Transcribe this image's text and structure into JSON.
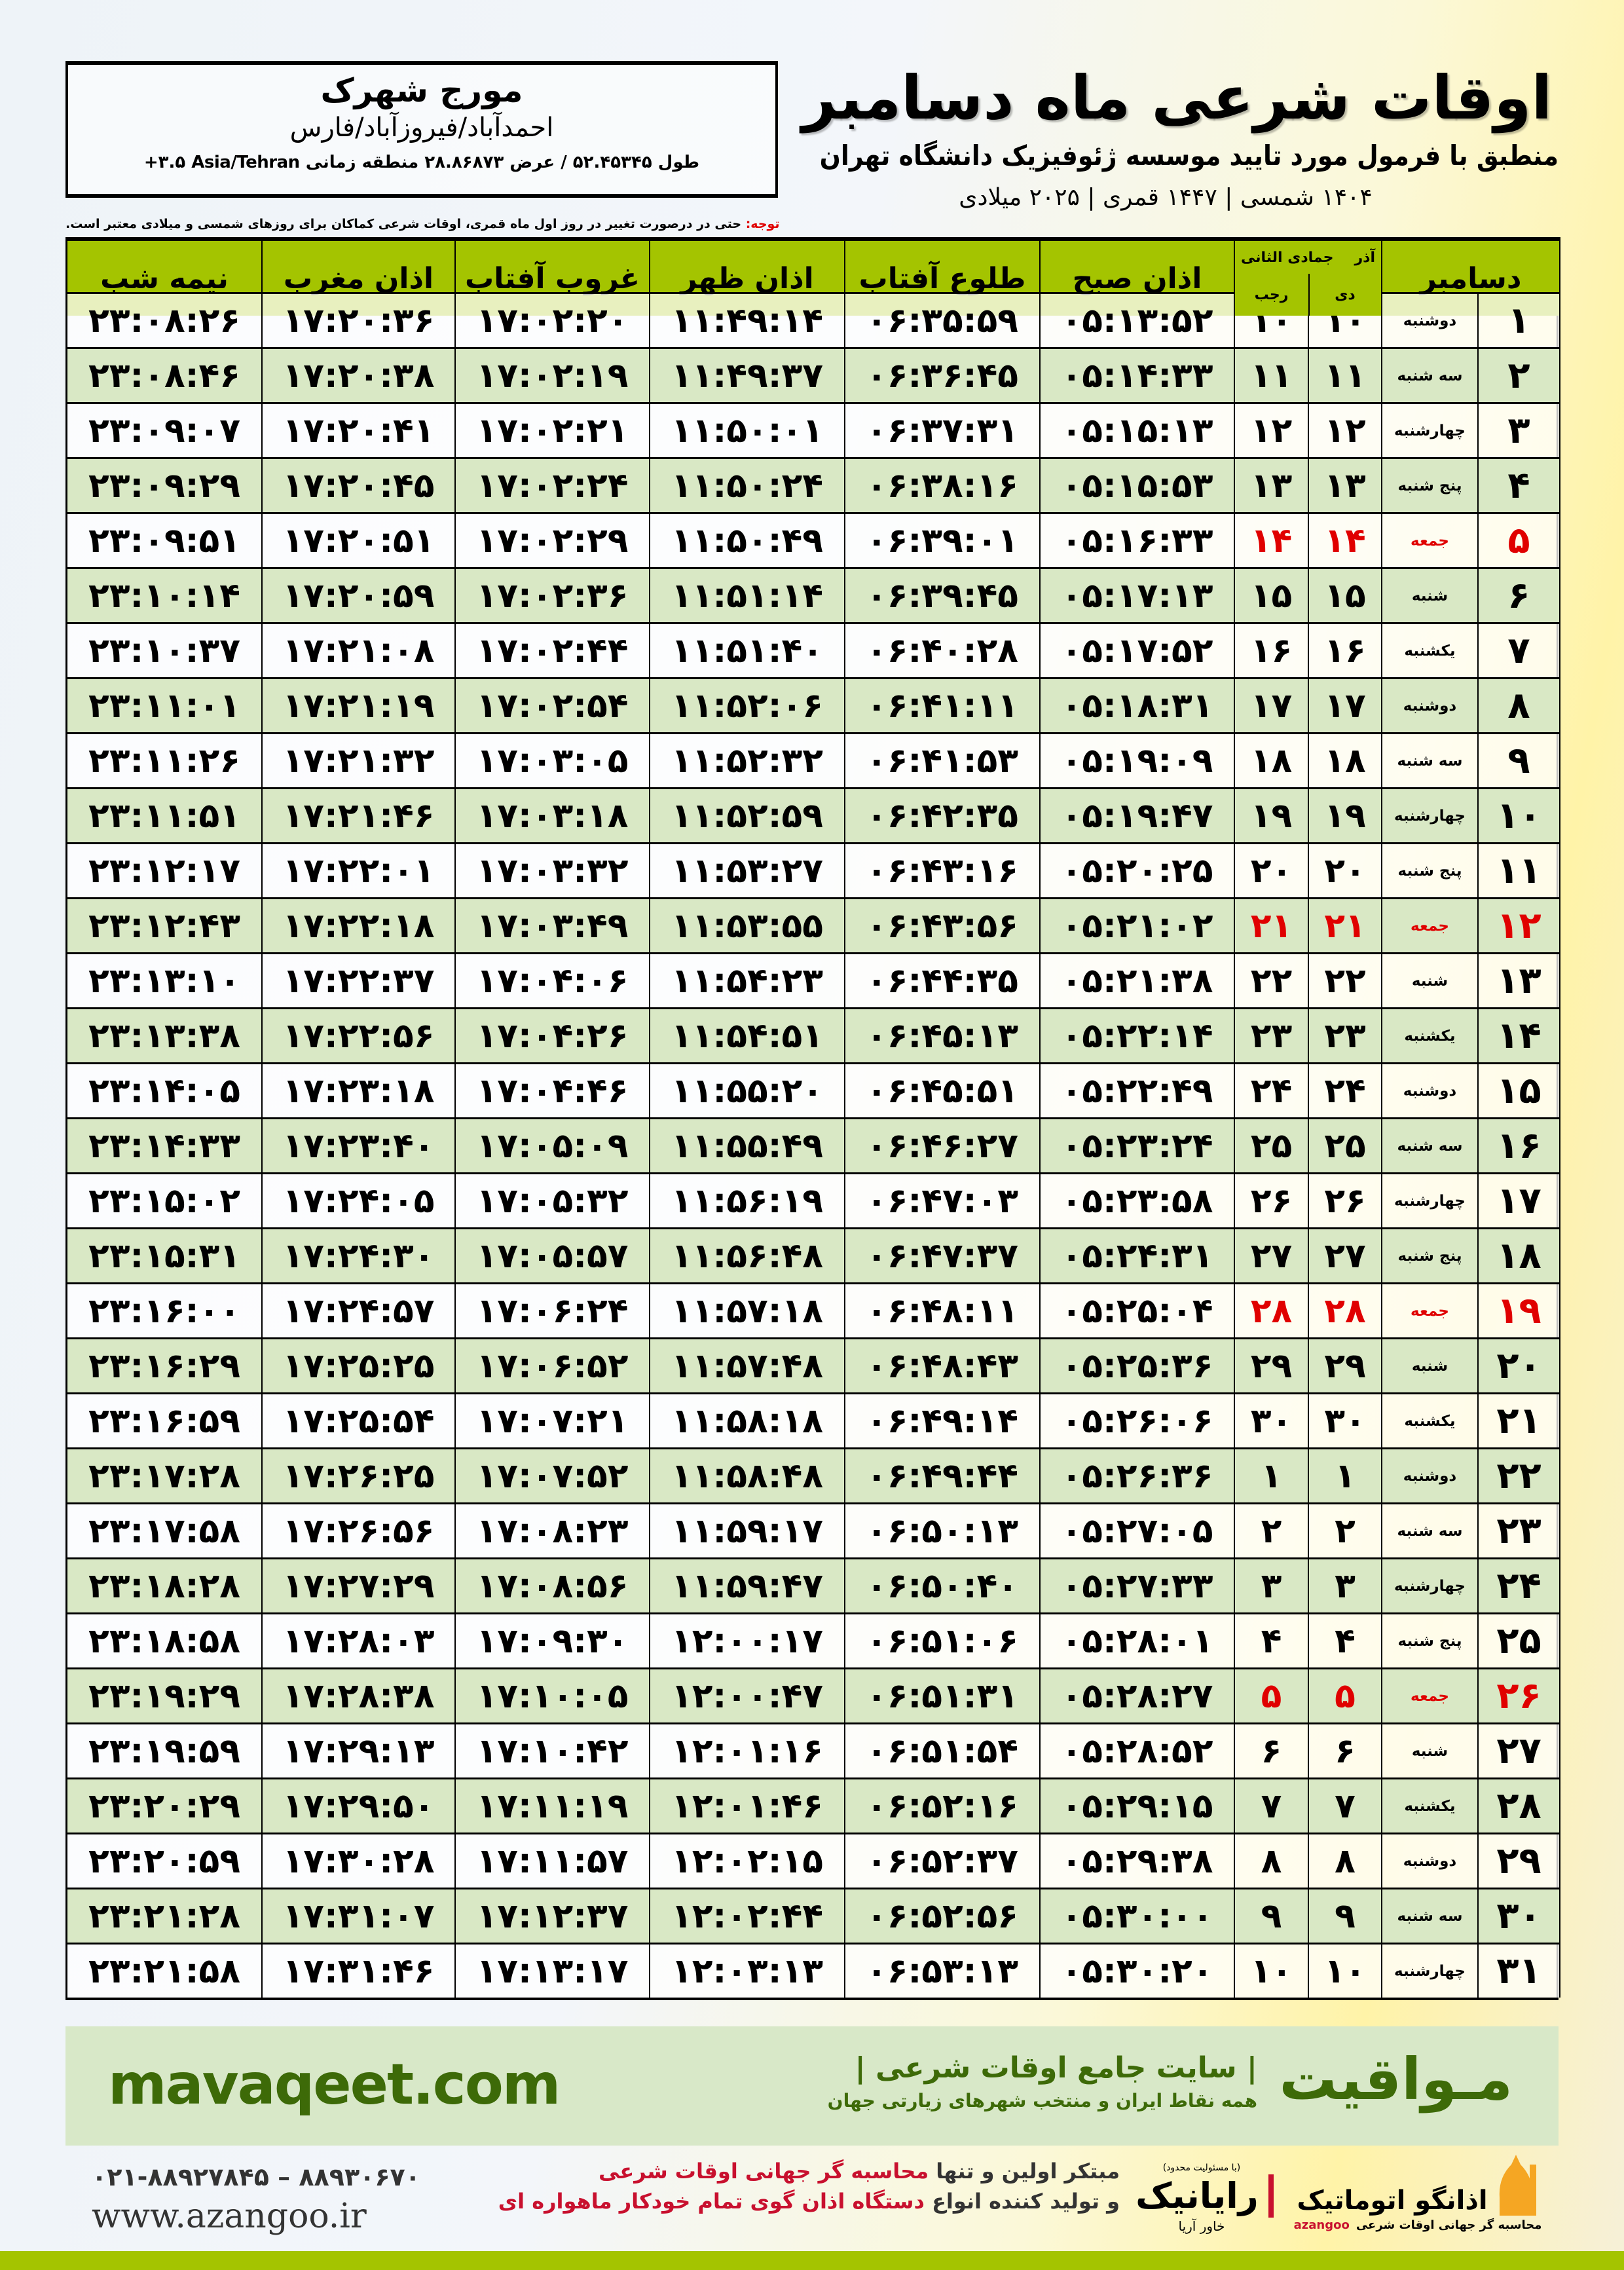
{
  "location": {
    "city": "مورج شهرک",
    "region": "احمدآباد/فیروزآباد/فارس",
    "coords": "طول ۵۲.۴۵۳۴۵ / عرض ۲۸.۸۶۸۷۳ منطقه زمانی ‎+۳.۵ Asia/Tehran"
  },
  "header": {
    "title": "اوقات شرعی ماه دسامبر",
    "subtitle": "منطبق با فرمول مورد تایید موسسه ژئوفیزیک دانشگاه تهران",
    "dateline": "۱۴۰۴ شمسی | ۱۴۴۷ قمری | ۲۰۲۵ میلادی"
  },
  "note": {
    "label": "توجه:",
    "text": " حتی در درصورت تغییر در روز اول ماه قمری، اوقات شرعی کماکان برای روزهای شمسی و میلادی معتبر است."
  },
  "table": {
    "headers": {
      "midnight": "نیمه شب",
      "maghrib": "اذان مغرب",
      "sunset": "غروب آفتاب",
      "dhuhr": "اذان ظهر",
      "sunrise": "طلوع آفتاب",
      "fajr": "اذان صبح",
      "hijri_top": "جمادی الثانی",
      "hijri_bottom": "رجب",
      "shamsi_top": "آذر",
      "shamsi_bottom": "دی",
      "gregorian": "دسامبر"
    },
    "friday_color": "#e00000",
    "header_color": "#a4c400",
    "alt_row_color": "#d9e8c5",
    "columns": [
      "day",
      "weekday",
      "shamsi",
      "hijri",
      "fajr",
      "sunrise",
      "dhuhr",
      "sunset",
      "maghrib",
      "midnight"
    ],
    "rows": [
      [
        "۱",
        "دوشنبه",
        "۱۰",
        "۱۰",
        "۰۵:۱۳:۵۲",
        "۰۶:۳۵:۵۹",
        "۱۱:۴۹:۱۴",
        "۱۷:۰۲:۲۰",
        "۱۷:۲۰:۳۶",
        "۲۳:۰۸:۲۶"
      ],
      [
        "۲",
        "سه شنبه",
        "۱۱",
        "۱۱",
        "۰۵:۱۴:۳۳",
        "۰۶:۳۶:۴۵",
        "۱۱:۴۹:۳۷",
        "۱۷:۰۲:۱۹",
        "۱۷:۲۰:۳۸",
        "۲۳:۰۸:۴۶"
      ],
      [
        "۳",
        "چهارشنبه",
        "۱۲",
        "۱۲",
        "۰۵:۱۵:۱۳",
        "۰۶:۳۷:۳۱",
        "۱۱:۵۰:۰۱",
        "۱۷:۰۲:۲۱",
        "۱۷:۲۰:۴۱",
        "۲۳:۰۹:۰۷"
      ],
      [
        "۴",
        "پنج شنبه",
        "۱۳",
        "۱۳",
        "۰۵:۱۵:۵۳",
        "۰۶:۳۸:۱۶",
        "۱۱:۵۰:۲۴",
        "۱۷:۰۲:۲۴",
        "۱۷:۲۰:۴۵",
        "۲۳:۰۹:۲۹"
      ],
      [
        "۵",
        "جمعه",
        "۱۴",
        "۱۴",
        "۰۵:۱۶:۳۳",
        "۰۶:۳۹:۰۱",
        "۱۱:۵۰:۴۹",
        "۱۷:۰۲:۲۹",
        "۱۷:۲۰:۵۱",
        "۲۳:۰۹:۵۱"
      ],
      [
        "۶",
        "شنبه",
        "۱۵",
        "۱۵",
        "۰۵:۱۷:۱۳",
        "۰۶:۳۹:۴۵",
        "۱۱:۵۱:۱۴",
        "۱۷:۰۲:۳۶",
        "۱۷:۲۰:۵۹",
        "۲۳:۱۰:۱۴"
      ],
      [
        "۷",
        "یکشنبه",
        "۱۶",
        "۱۶",
        "۰۵:۱۷:۵۲",
        "۰۶:۴۰:۲۸",
        "۱۱:۵۱:۴۰",
        "۱۷:۰۲:۴۴",
        "۱۷:۲۱:۰۸",
        "۲۳:۱۰:۳۷"
      ],
      [
        "۸",
        "دوشنبه",
        "۱۷",
        "۱۷",
        "۰۵:۱۸:۳۱",
        "۰۶:۴۱:۱۱",
        "۱۱:۵۲:۰۶",
        "۱۷:۰۲:۵۴",
        "۱۷:۲۱:۱۹",
        "۲۳:۱۱:۰۱"
      ],
      [
        "۹",
        "سه شنبه",
        "۱۸",
        "۱۸",
        "۰۵:۱۹:۰۹",
        "۰۶:۴۱:۵۳",
        "۱۱:۵۲:۳۲",
        "۱۷:۰۳:۰۵",
        "۱۷:۲۱:۳۲",
        "۲۳:۱۱:۲۶"
      ],
      [
        "۱۰",
        "چهارشنبه",
        "۱۹",
        "۱۹",
        "۰۵:۱۹:۴۷",
        "۰۶:۴۲:۳۵",
        "۱۱:۵۲:۵۹",
        "۱۷:۰۳:۱۸",
        "۱۷:۲۱:۴۶",
        "۲۳:۱۱:۵۱"
      ],
      [
        "۱۱",
        "پنج شنبه",
        "۲۰",
        "۲۰",
        "۰۵:۲۰:۲۵",
        "۰۶:۴۳:۱۶",
        "۱۱:۵۳:۲۷",
        "۱۷:۰۳:۳۲",
        "۱۷:۲۲:۰۱",
        "۲۳:۱۲:۱۷"
      ],
      [
        "۱۲",
        "جمعه",
        "۲۱",
        "۲۱",
        "۰۵:۲۱:۰۲",
        "۰۶:۴۳:۵۶",
        "۱۱:۵۳:۵۵",
        "۱۷:۰۳:۴۹",
        "۱۷:۲۲:۱۸",
        "۲۳:۱۲:۴۳"
      ],
      [
        "۱۳",
        "شنبه",
        "۲۲",
        "۲۲",
        "۰۵:۲۱:۳۸",
        "۰۶:۴۴:۳۵",
        "۱۱:۵۴:۲۳",
        "۱۷:۰۴:۰۶",
        "۱۷:۲۲:۳۷",
        "۲۳:۱۳:۱۰"
      ],
      [
        "۱۴",
        "یکشنبه",
        "۲۳",
        "۲۳",
        "۰۵:۲۲:۱۴",
        "۰۶:۴۵:۱۳",
        "۱۱:۵۴:۵۱",
        "۱۷:۰۴:۲۶",
        "۱۷:۲۲:۵۶",
        "۲۳:۱۳:۳۸"
      ],
      [
        "۱۵",
        "دوشنبه",
        "۲۴",
        "۲۴",
        "۰۵:۲۲:۴۹",
        "۰۶:۴۵:۵۱",
        "۱۱:۵۵:۲۰",
        "۱۷:۰۴:۴۶",
        "۱۷:۲۳:۱۸",
        "۲۳:۱۴:۰۵"
      ],
      [
        "۱۶",
        "سه شنبه",
        "۲۵",
        "۲۵",
        "۰۵:۲۳:۲۴",
        "۰۶:۴۶:۲۷",
        "۱۱:۵۵:۴۹",
        "۱۷:۰۵:۰۹",
        "۱۷:۲۳:۴۰",
        "۲۳:۱۴:۳۳"
      ],
      [
        "۱۷",
        "چهارشنبه",
        "۲۶",
        "۲۶",
        "۰۵:۲۳:۵۸",
        "۰۶:۴۷:۰۳",
        "۱۱:۵۶:۱۹",
        "۱۷:۰۵:۳۲",
        "۱۷:۲۴:۰۵",
        "۲۳:۱۵:۰۲"
      ],
      [
        "۱۸",
        "پنج شنبه",
        "۲۷",
        "۲۷",
        "۰۵:۲۴:۳۱",
        "۰۶:۴۷:۳۷",
        "۱۱:۵۶:۴۸",
        "۱۷:۰۵:۵۷",
        "۱۷:۲۴:۳۰",
        "۲۳:۱۵:۳۱"
      ],
      [
        "۱۹",
        "جمعه",
        "۲۸",
        "۲۸",
        "۰۵:۲۵:۰۴",
        "۰۶:۴۸:۱۱",
        "۱۱:۵۷:۱۸",
        "۱۷:۰۶:۲۴",
        "۱۷:۲۴:۵۷",
        "۲۳:۱۶:۰۰"
      ],
      [
        "۲۰",
        "شنبه",
        "۲۹",
        "۲۹",
        "۰۵:۲۵:۳۶",
        "۰۶:۴۸:۴۳",
        "۱۱:۵۷:۴۸",
        "۱۷:۰۶:۵۲",
        "۱۷:۲۵:۲۵",
        "۲۳:۱۶:۲۹"
      ],
      [
        "۲۱",
        "یکشنبه",
        "۳۰",
        "۳۰",
        "۰۵:۲۶:۰۶",
        "۰۶:۴۹:۱۴",
        "۱۱:۵۸:۱۸",
        "۱۷:۰۷:۲۱",
        "۱۷:۲۵:۵۴",
        "۲۳:۱۶:۵۹"
      ],
      [
        "۲۲",
        "دوشنبه",
        "۱",
        "۱",
        "۰۵:۲۶:۳۶",
        "۰۶:۴۹:۴۴",
        "۱۱:۵۸:۴۸",
        "۱۷:۰۷:۵۲",
        "۱۷:۲۶:۲۵",
        "۲۳:۱۷:۲۸"
      ],
      [
        "۲۳",
        "سه شنبه",
        "۲",
        "۲",
        "۰۵:۲۷:۰۵",
        "۰۶:۵۰:۱۳",
        "۱۱:۵۹:۱۷",
        "۱۷:۰۸:۲۳",
        "۱۷:۲۶:۵۶",
        "۲۳:۱۷:۵۸"
      ],
      [
        "۲۴",
        "چهارشنبه",
        "۳",
        "۳",
        "۰۵:۲۷:۳۳",
        "۰۶:۵۰:۴۰",
        "۱۱:۵۹:۴۷",
        "۱۷:۰۸:۵۶",
        "۱۷:۲۷:۲۹",
        "۲۳:۱۸:۲۸"
      ],
      [
        "۲۵",
        "پنج شنبه",
        "۴",
        "۴",
        "۰۵:۲۸:۰۱",
        "۰۶:۵۱:۰۶",
        "۱۲:۰۰:۱۷",
        "۱۷:۰۹:۳۰",
        "۱۷:۲۸:۰۳",
        "۲۳:۱۸:۵۸"
      ],
      [
        "۲۶",
        "جمعه",
        "۵",
        "۵",
        "۰۵:۲۸:۲۷",
        "۰۶:۵۱:۳۱",
        "۱۲:۰۰:۴۷",
        "۱۷:۱۰:۰۵",
        "۱۷:۲۸:۳۸",
        "۲۳:۱۹:۲۹"
      ],
      [
        "۲۷",
        "شنبه",
        "۶",
        "۶",
        "۰۵:۲۸:۵۲",
        "۰۶:۵۱:۵۴",
        "۱۲:۰۱:۱۶",
        "۱۷:۱۰:۴۲",
        "۱۷:۲۹:۱۳",
        "۲۳:۱۹:۵۹"
      ],
      [
        "۲۸",
        "یکشنبه",
        "۷",
        "۷",
        "۰۵:۲۹:۱۵",
        "۰۶:۵۲:۱۶",
        "۱۲:۰۱:۴۶",
        "۱۷:۱۱:۱۹",
        "۱۷:۲۹:۵۰",
        "۲۳:۲۰:۲۹"
      ],
      [
        "۲۹",
        "دوشنبه",
        "۸",
        "۸",
        "۰۵:۲۹:۳۸",
        "۰۶:۵۲:۳۷",
        "۱۲:۰۲:۱۵",
        "۱۷:۱۱:۵۷",
        "۱۷:۳۰:۲۸",
        "۲۳:۲۰:۵۹"
      ],
      [
        "۳۰",
        "سه شنبه",
        "۹",
        "۹",
        "۰۵:۳۰:۰۰",
        "۰۶:۵۲:۵۶",
        "۱۲:۰۲:۴۴",
        "۱۷:۱۲:۳۷",
        "۱۷:۳۱:۰۷",
        "۲۳:۲۱:۲۸"
      ],
      [
        "۳۱",
        "چهارشنبه",
        "۱۰",
        "۱۰",
        "۰۵:۳۰:۲۰",
        "۰۶:۵۳:۱۳",
        "۱۲:۰۳:۱۳",
        "۱۷:۱۳:۱۷",
        "۱۷:۳۱:۴۶",
        "۲۳:۲۱:۵۸"
      ]
    ]
  },
  "footer": {
    "brand": "مـواقیت",
    "brand_tagline": "| سایت جامع اوقات شرعی |",
    "brand_sub": "همه نقاط ایران و منتخب شهرهای زیارتی جهان",
    "site": "mavaqeet.com",
    "promo_line1_a": "مبتکر اولین و تنها ",
    "promo_line1_b": "محاسبه گر جهانی اوقات شرعی",
    "promo_line2_a": "و تولید کننده انواع ",
    "promo_line2_b": "دستگاه اذان گوی تمام خودکار ماهواره ای",
    "phone": "۰۲۱-۸۸۹۲۷۸۴۵ – ۸۸۹۳۰۶۷۰",
    "web": "www.azangoo.ir",
    "rayanik_note": "(با مسئولیت محدود)",
    "rayanik_name": "رایانیک",
    "rayanik_sub": "خاور آریا",
    "azangoo_name": "اذانگو اتوماتیک",
    "azangoo_sub": "محاسبه گر جهانی اوقات شرعی",
    "azangoo_latin": "azangoo",
    "brand_color": "#3d6a08",
    "accent_red": "#c8102e"
  }
}
